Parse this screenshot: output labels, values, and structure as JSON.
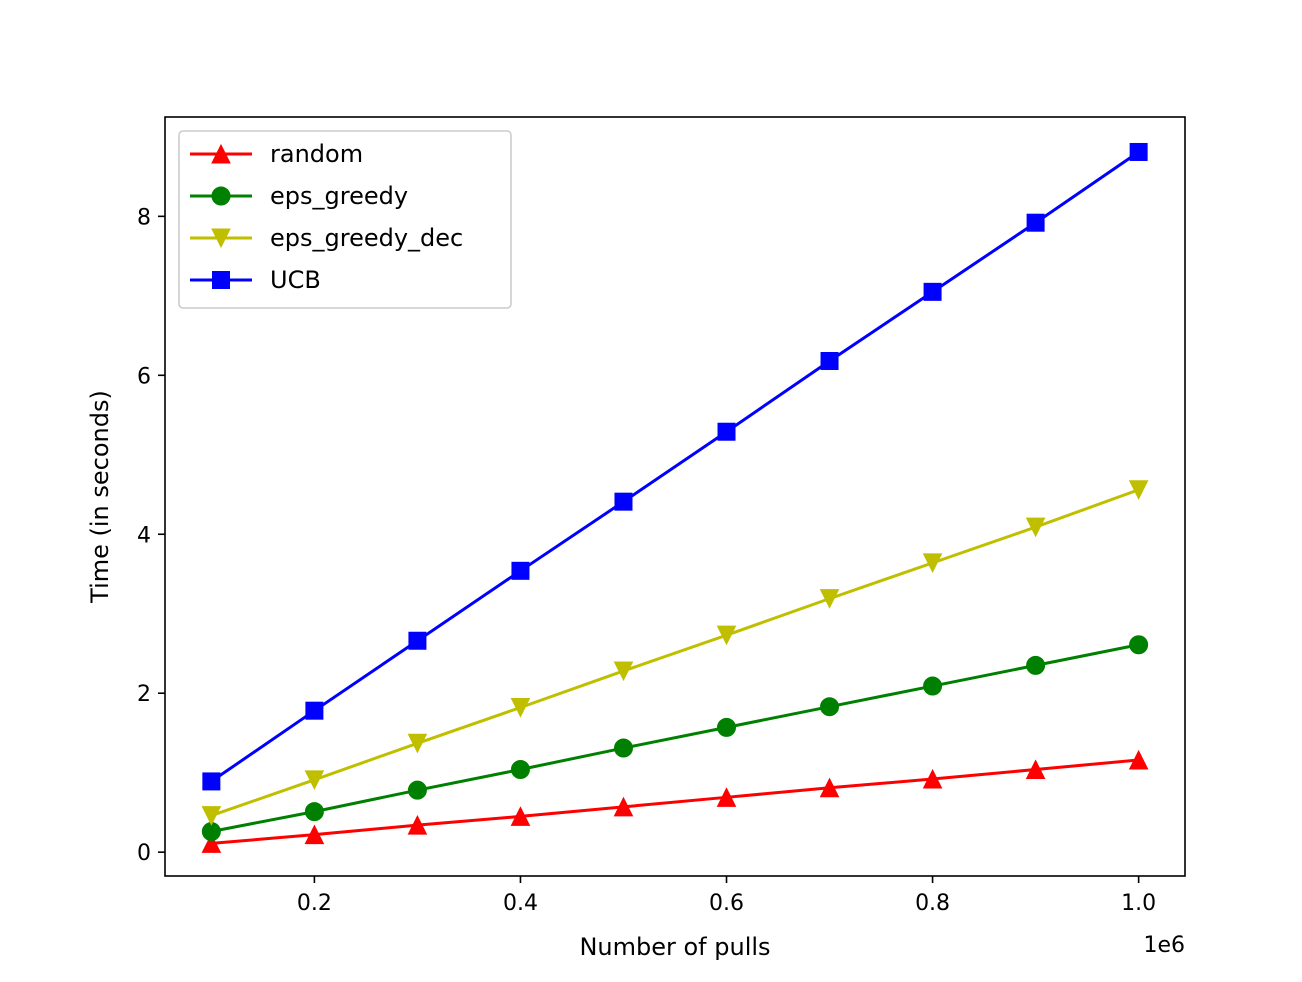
{
  "chart_data": {
    "type": "line",
    "title": "",
    "xlabel": "Number of pulls",
    "ylabel": "Time (in seconds)",
    "x_offset_text": "1e6",
    "xlim": [
      55000,
      1045000
    ],
    "ylim": [
      -0.3,
      9.25
    ],
    "xticks": [
      200000,
      400000,
      600000,
      800000,
      1000000
    ],
    "xtick_labels": [
      "0.2",
      "0.4",
      "0.6",
      "0.8",
      "1.0"
    ],
    "yticks": [
      0,
      2,
      4,
      6,
      8
    ],
    "ytick_labels": [
      "0",
      "2",
      "4",
      "6",
      "8"
    ],
    "grid": false,
    "legend_position": "upper-left",
    "x": [
      100000,
      200000,
      300000,
      400000,
      500000,
      600000,
      700000,
      800000,
      900000,
      1000000
    ],
    "series": [
      {
        "name": "random",
        "color": "#ff0000",
        "marker": "triangle-up",
        "values": [
          0.11,
          0.22,
          0.34,
          0.45,
          0.57,
          0.69,
          0.81,
          0.92,
          1.04,
          1.16
        ]
      },
      {
        "name": "eps_greedy",
        "color": "#008000",
        "marker": "circle",
        "values": [
          0.26,
          0.51,
          0.78,
          1.04,
          1.31,
          1.57,
          1.83,
          2.09,
          2.35,
          2.61
        ]
      },
      {
        "name": "eps_greedy_dec",
        "color": "#bfbf00",
        "marker": "triangle-down",
        "values": [
          0.46,
          0.91,
          1.37,
          1.82,
          2.28,
          2.73,
          3.19,
          3.64,
          4.09,
          4.56
        ]
      },
      {
        "name": "UCB",
        "color": "#0000ff",
        "marker": "square",
        "values": [
          0.89,
          1.78,
          2.66,
          3.54,
          4.41,
          5.29,
          6.18,
          7.05,
          7.92,
          8.81
        ]
      }
    ]
  }
}
